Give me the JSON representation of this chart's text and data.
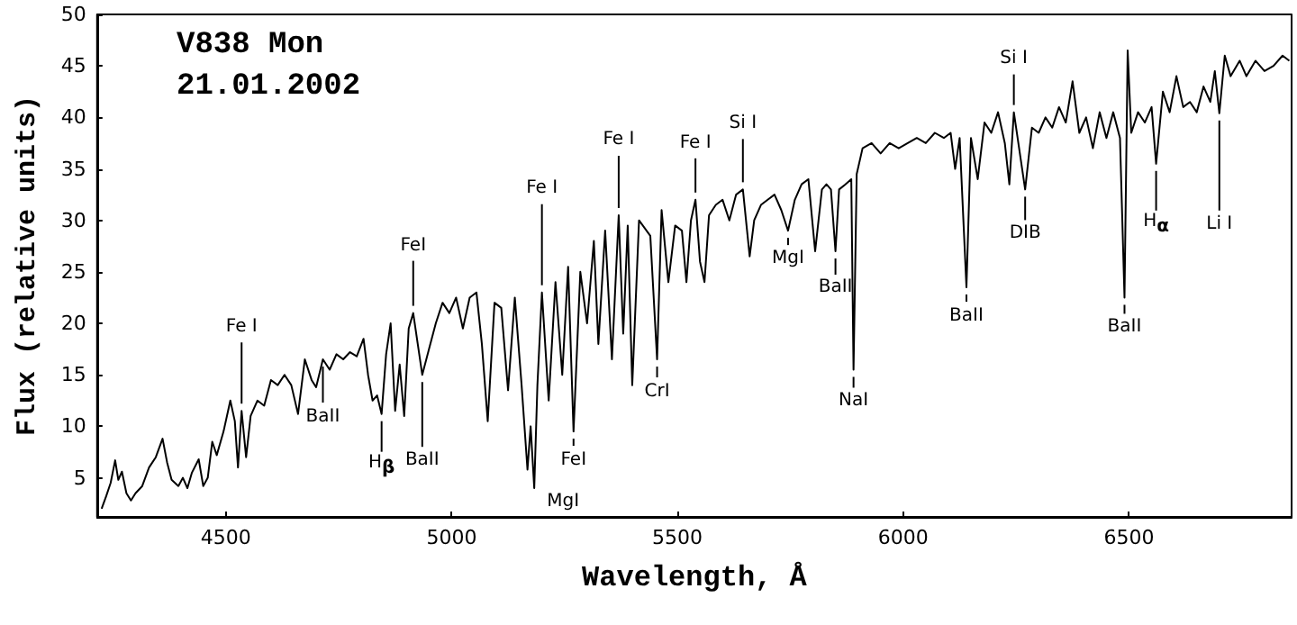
{
  "chart_data": {
    "type": "line",
    "title": "V838 Mon",
    "subtitle": "21.01.2002",
    "xlabel": "Wavelength, Å",
    "ylabel": "Flux (relative units)",
    "xlim": [
      4215,
      6860
    ],
    "xticks": [
      4500,
      5000,
      5500,
      6000,
      6500
    ],
    "ylim": [
      1.2,
      50
    ],
    "yticks": [
      5,
      10,
      15,
      20,
      25,
      30,
      35,
      40,
      45,
      50
    ],
    "grid": false,
    "marker": "none",
    "line_style": "solid",
    "series": [
      {
        "color": "#000000",
        "x": [
          4225,
          4235,
          4245,
          4255,
          4262,
          4270,
          4280,
          4290,
          4300,
          4315,
          4330,
          4345,
          4360,
          4370,
          4380,
          4395,
          4405,
          4415,
          4425,
          4440,
          4450,
          4460,
          4470,
          4480,
          4495,
          4510,
          4520,
          4527,
          4535,
          4545,
          4555,
          4570,
          4585,
          4600,
          4615,
          4630,
          4645,
          4660,
          4675,
          4690,
          4700,
          4715,
          4730,
          4745,
          4760,
          4775,
          4790,
          4805,
          4815,
          4825,
          4835,
          4845,
          4855,
          4865,
          4875,
          4885,
          4895,
          4905,
          4915,
          4925,
          4935,
          4950,
          4965,
          4980,
          4995,
          5010,
          5025,
          5040,
          5055,
          5067,
          5080,
          5095,
          5110,
          5125,
          5140,
          5155,
          5168,
          5175,
          5183,
          5190,
          5200,
          5215,
          5230,
          5245,
          5258,
          5270,
          5285,
          5300,
          5315,
          5325,
          5340,
          5355,
          5370,
          5380,
          5390,
          5400,
          5415,
          5440,
          5455,
          5465,
          5480,
          5495,
          5510,
          5520,
          5530,
          5540,
          5550,
          5560,
          5570,
          5585,
          5600,
          5615,
          5630,
          5645,
          5660,
          5670,
          5685,
          5700,
          5715,
          5730,
          5745,
          5760,
          5775,
          5790,
          5805,
          5820,
          5830,
          5840,
          5850,
          5858,
          5872,
          5885,
          5890,
          5897,
          5910,
          5930,
          5950,
          5970,
          5990,
          6010,
          6030,
          6050,
          6070,
          6090,
          6105,
          6115,
          6125,
          6140,
          6150,
          6165,
          6180,
          6195,
          6210,
          6225,
          6235,
          6245,
          6260,
          6270,
          6285,
          6300,
          6315,
          6330,
          6345,
          6360,
          6375,
          6390,
          6405,
          6420,
          6435,
          6450,
          6465,
          6480,
          6490,
          6497,
          6505,
          6520,
          6535,
          6550,
          6560,
          6575,
          6590,
          6605,
          6620,
          6635,
          6650,
          6665,
          6680,
          6690,
          6700,
          6712,
          6725,
          6745,
          6760,
          6780,
          6800,
          6820,
          6840,
          6855
        ],
        "values": [
          2.0,
          3.2,
          4.5,
          6.7,
          4.8,
          5.6,
          3.5,
          2.8,
          3.5,
          4.2,
          6.0,
          7.0,
          8.8,
          6.5,
          4.8,
          4.2,
          5.0,
          4.0,
          5.5,
          6.8,
          4.2,
          5.0,
          8.5,
          7.2,
          9.5,
          12.5,
          10.5,
          6.0,
          11.5,
          7.0,
          11.0,
          12.5,
          12.0,
          14.5,
          14.0,
          15.0,
          14.0,
          11.2,
          16.5,
          14.5,
          13.8,
          16.5,
          15.5,
          17.0,
          16.5,
          17.2,
          16.8,
          18.5,
          15.0,
          12.5,
          13.0,
          11.2,
          17.0,
          20.0,
          11.5,
          16.0,
          11.0,
          19.5,
          21.0,
          18.0,
          15.0,
          17.5,
          20.0,
          22.0,
          21.0,
          22.5,
          19.5,
          22.5,
          23.0,
          18.0,
          10.5,
          22.0,
          21.5,
          13.5,
          22.5,
          14.0,
          5.8,
          10.0,
          4.0,
          14.0,
          23.0,
          12.5,
          24.0,
          15.0,
          25.5,
          9.5,
          25.0,
          20.0,
          28.0,
          18.0,
          29.0,
          16.5,
          30.5,
          19.0,
          29.5,
          14.0,
          30.0,
          28.5,
          16.5,
          31.0,
          24.0,
          29.5,
          29.0,
          24.0,
          30.0,
          32.0,
          26.0,
          24.0,
          30.5,
          31.5,
          32.0,
          30.0,
          32.5,
          33.0,
          26.5,
          30.0,
          31.5,
          32.0,
          32.5,
          31.0,
          29.0,
          32.0,
          33.5,
          34.0,
          27.0,
          33.0,
          33.5,
          33.0,
          27.0,
          33.0,
          33.5,
          34.0,
          15.5,
          34.5,
          37.0,
          37.5,
          36.5,
          37.5,
          37.0,
          37.5,
          38.0,
          37.5,
          38.5,
          38.0,
          38.5,
          35.0,
          38.0,
          23.5,
          38.0,
          34.0,
          39.5,
          38.5,
          40.5,
          37.5,
          33.5,
          40.5,
          36.0,
          33.0,
          39.0,
          38.5,
          40.0,
          39.0,
          41.0,
          39.5,
          43.5,
          38.5,
          40.0,
          37.0,
          40.5,
          38.0,
          40.5,
          38.0,
          22.5,
          46.5,
          38.5,
          40.5,
          39.5,
          41.0,
          35.5,
          42.5,
          40.5,
          44.0,
          41.0,
          41.5,
          40.5,
          43.0,
          41.5,
          44.5,
          40.4,
          46.0,
          44.0,
          45.5,
          44.0,
          45.5,
          44.5,
          45.0,
          46.0,
          45.5
        ]
      }
    ],
    "annotations": [
      {
        "text": "Fe I",
        "x": 4535,
        "y": 11.5
      },
      {
        "text": "BaII",
        "x": 4715,
        "y": 16.5
      },
      {
        "text": "H$_{β}$",
        "x": 4845,
        "y": 11.2
      },
      {
        "text": "FeI",
        "x": 4915,
        "y": 21.0
      },
      {
        "text": "BaII",
        "x": 4935,
        "y": 15.0
      },
      {
        "text": "Fe I",
        "x": 5200,
        "y": 23.0
      },
      {
        "text": "MgI",
        "x": 5183,
        "y": 4.0
      },
      {
        "text": "FeI",
        "x": 5270,
        "y": 9.5
      },
      {
        "text": "Fe I",
        "x": 5370,
        "y": 30.5
      },
      {
        "text": "CrI",
        "x": 5455,
        "y": 16.5
      },
      {
        "text": "Fe I",
        "x": 5540,
        "y": 32.0
      },
      {
        "text": "Si I",
        "x": 5645,
        "y": 33.0
      },
      {
        "text": "MgI",
        "x": 5745,
        "y": 29.0
      },
      {
        "text": "BaII",
        "x": 5850,
        "y": 27.0
      },
      {
        "text": "NaI",
        "x": 5890,
        "y": 15.5
      },
      {
        "text": "BaII",
        "x": 6140,
        "y": 23.5
      },
      {
        "text": "Si I",
        "x": 6245,
        "y": 40.5
      },
      {
        "text": "DIB",
        "x": 6270,
        "y": 33.0
      },
      {
        "text": "BaII",
        "x": 6490,
        "y": 22.5
      },
      {
        "text": "H$_{α}$",
        "x": 6560,
        "y": 35.5
      },
      {
        "text": "Li I",
        "x": 6700,
        "y": 40.4
      }
    ]
  }
}
